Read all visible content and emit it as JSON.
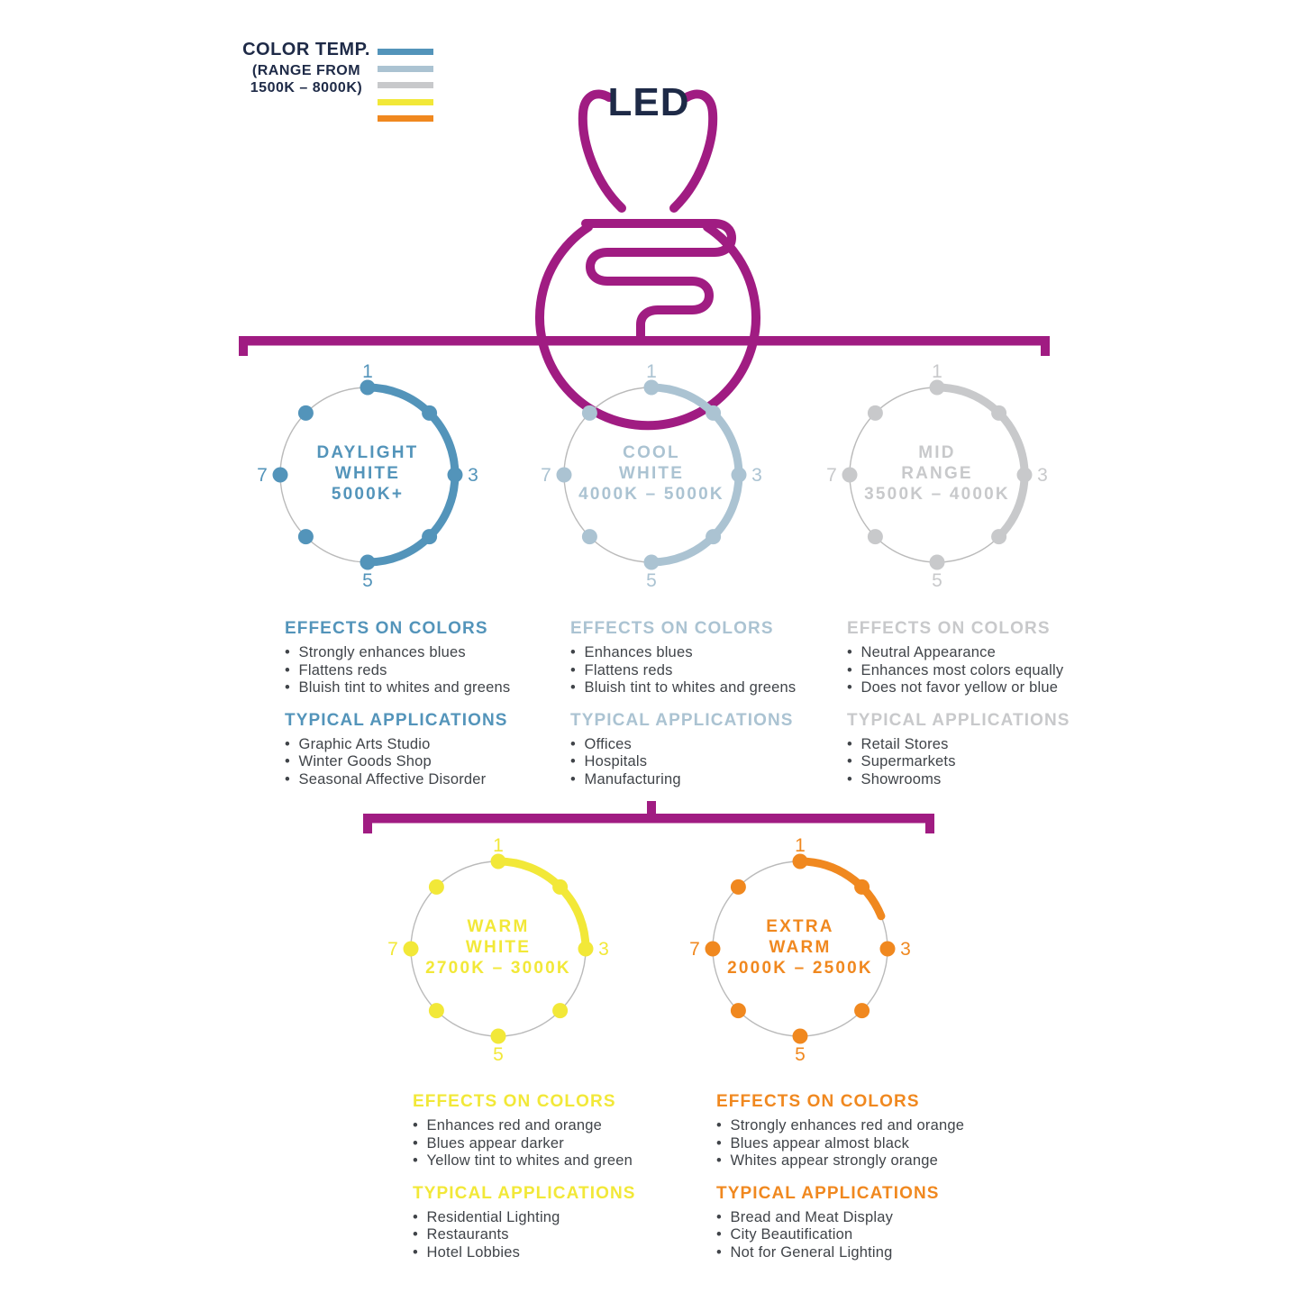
{
  "legend": {
    "title": "COLOR TEMP.",
    "subtitle_line1": "(RANGE FROM",
    "subtitle_line2": "1500K – 8000K)",
    "bar_colors": [
      "#5394BA",
      "#ABC3D2",
      "#C8C9CB",
      "#F2E838",
      "#F0881F"
    ]
  },
  "bulb": {
    "label": "LED",
    "outline_color": "#A01C82",
    "label_color": "#1E2A47"
  },
  "dial_scale_numbers": [
    "1",
    "3",
    "5",
    "7"
  ],
  "groups": [
    {
      "id": "daylight-white",
      "name_lines": [
        "DAYLIGHT",
        "WHITE",
        "5000K+"
      ],
      "color": "#5394BA",
      "arc_degrees": 180,
      "effects_heading": "EFFECTS ON COLORS",
      "effects": [
        "Strongly enhances blues",
        "Flattens reds",
        "Bluish tint to whites and greens"
      ],
      "applications_heading": "TYPICAL APPLICATIONS",
      "applications": [
        "Graphic Arts Studio",
        "Winter Goods Shop",
        "Seasonal Affective Disorder"
      ]
    },
    {
      "id": "cool-white",
      "name_lines": [
        "COOL",
        "WHITE",
        "4000K – 5000K"
      ],
      "color": "#ABC3D2",
      "arc_degrees": 180,
      "effects_heading": "EFFECTS ON COLORS",
      "effects": [
        "Enhances blues",
        "Flattens reds",
        "Bluish tint to whites and greens"
      ],
      "applications_heading": "TYPICAL APPLICATIONS",
      "applications": [
        "Offices",
        "Hospitals",
        "Manufacturing"
      ]
    },
    {
      "id": "mid-range",
      "name_lines": [
        "MID",
        "RANGE",
        "3500K – 4000K"
      ],
      "color": "#C8C9CB",
      "arc_degrees": 135,
      "effects_heading": "EFFECTS ON COLORS",
      "effects": [
        "Neutral Appearance",
        "Enhances most colors equally",
        "Does not favor yellow or blue"
      ],
      "applications_heading": "TYPICAL APPLICATIONS",
      "applications": [
        "Retail Stores",
        "Supermarkets",
        "Showrooms"
      ]
    },
    {
      "id": "warm-white",
      "name_lines": [
        "WARM",
        "WHITE",
        "2700K – 3000K"
      ],
      "color": "#F2E838",
      "arc_degrees": 90,
      "effects_heading": "EFFECTS ON COLORS",
      "effects": [
        "Enhances red and orange",
        "Blues appear darker",
        "Yellow tint to whites and green"
      ],
      "applications_heading": "TYPICAL APPLICATIONS",
      "applications": [
        "Residential Lighting",
        "Restaurants",
        "Hotel Lobbies"
      ]
    },
    {
      "id": "extra-warm",
      "name_lines": [
        "EXTRA",
        "WARM",
        "2000K – 2500K"
      ],
      "color": "#F0881F",
      "arc_degrees": 68,
      "effects_heading": "EFFECTS ON COLORS",
      "effects": [
        "Strongly enhances red and orange",
        "Blues appear almost black",
        "Whites appear strongly orange"
      ],
      "applications_heading": "TYPICAL APPLICATIONS",
      "applications": [
        "Bread and Meat Display",
        "City Beautification",
        "Not for General Lighting"
      ]
    }
  ]
}
